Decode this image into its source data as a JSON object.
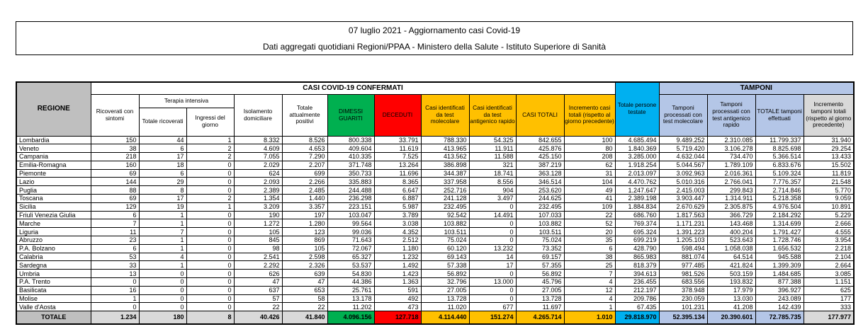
{
  "title": {
    "line1": "07 luglio 2021 - Aggiornamento casi Covid-19",
    "line2": "Dati aggregati quotidiani Regioni/PPAA - Ministero della Salute - Istituto Superiore di Sanità"
  },
  "colors": {
    "green": "#00B050",
    "red": "#FF0000",
    "amber": "#FFC000",
    "cyan": "#00B0F0",
    "lightblue": "#B4C6E7",
    "gray": "#BFBFBF",
    "lightgray": "#D9D9D9"
  },
  "table": {
    "groups": {
      "casi": "CASI COVID-19 CONFERMATI",
      "tamponi": "TAMPONI",
      "terapia": "Terapia intensiva"
    },
    "headers": {
      "regione": "REGIONE",
      "ricoverati": "Ricoverati con sintomi",
      "totale_ricoverati": "Totale ricoverati",
      "ingressi": "Ingressi del giorno",
      "isolamento": "Isolamento domiciliare",
      "attualmente_positivi": "Totale attualmente positivi",
      "dimessi": "DIMESSI GUARITI",
      "deceduti": "DECEDUTI",
      "casi_molecolare": "Casi identificati da test molecolare",
      "casi_antigenico": "Casi identificati da test antigenico rapido",
      "casi_totali": "CASI TOTALI",
      "incremento_casi": "Incremento casi totali (rispetto al giorno precedente)",
      "persone_testate": "Totale persone testate",
      "tamponi_molecolare": "Tamponi processati con test molecolare",
      "tamponi_antigenico": "Tamponi processati con test antigenico rapido",
      "totale_tamponi": "TOTALE tamponi effettuati",
      "incremento_tamponi": "Incremento tamponi totali (rispetto al giorno precedente)"
    },
    "column_keys": [
      "ricoverati-con-sintomi",
      "totale-ricoverati",
      "ingressi-del-giorno",
      "isolamento-domiciliare",
      "totale-attualmente-positivi",
      "dimessi-guariti",
      "deceduti",
      "casi-test-molecolare",
      "casi-test-antigenico",
      "casi-totali",
      "incremento-casi",
      "totale-persone-testate",
      "tamponi-molecolare",
      "tamponi-antigenico",
      "totale-tamponi",
      "incremento-tamponi"
    ],
    "rows": [
      {
        "regione": "Lombardia",
        "values": [
          "150",
          "44",
          "1",
          "8.332",
          "8.526",
          "800.338",
          "33.791",
          "788.330",
          "54.325",
          "842.655",
          "100",
          "4.685.494",
          "9.489.252",
          "2.310.085",
          "11.799.337",
          "31.940"
        ]
      },
      {
        "regione": "Veneto",
        "values": [
          "38",
          "6",
          "2",
          "4.609",
          "4.653",
          "409.604",
          "11.619",
          "413.965",
          "11.911",
          "425.876",
          "80",
          "1.840.369",
          "5.719.420",
          "3.106.278",
          "8.825.698",
          "29.254"
        ]
      },
      {
        "regione": "Campania",
        "values": [
          "218",
          "17",
          "2",
          "7.055",
          "7.290",
          "410.335",
          "7.525",
          "413.562",
          "11.588",
          "425.150",
          "208",
          "3.285.000",
          "4.632.044",
          "734.470",
          "5.366.514",
          "13.433"
        ]
      },
      {
        "regione": "Emilia-Romagna",
        "values": [
          "160",
          "18",
          "0",
          "2.029",
          "2.207",
          "371.748",
          "13.264",
          "386.898",
          "321",
          "387.219",
          "62",
          "1.918.254",
          "5.044.567",
          "1.789.109",
          "6.833.676",
          "15.502"
        ]
      },
      {
        "regione": "Piemonte",
        "values": [
          "69",
          "6",
          "0",
          "624",
          "699",
          "350.733",
          "11.696",
          "344.387",
          "18.741",
          "363.128",
          "31",
          "2.013.097",
          "3.092.963",
          "2.016.361",
          "5.109.324",
          "11.819"
        ]
      },
      {
        "regione": "Lazio",
        "values": [
          "144",
          "29",
          "0",
          "2.093",
          "2.266",
          "335.883",
          "8.365",
          "337.958",
          "8.556",
          "346.514",
          "104",
          "4.470.762",
          "5.010.316",
          "2.766.041",
          "7.776.357",
          "21.548"
        ]
      },
      {
        "regione": "Puglia",
        "values": [
          "88",
          "8",
          "0",
          "2.389",
          "2.485",
          "244.488",
          "6.647",
          "252.716",
          "904",
          "253.620",
          "49",
          "1.247.647",
          "2.415.003",
          "299.843",
          "2.714.846",
          "5.770"
        ]
      },
      {
        "regione": "Toscana",
        "values": [
          "69",
          "17",
          "2",
          "1.354",
          "1.440",
          "236.298",
          "6.887",
          "241.128",
          "3.497",
          "244.625",
          "41",
          "2.389.198",
          "3.903.447",
          "1.314.911",
          "5.218.358",
          "9.059"
        ]
      },
      {
        "regione": "Sicilia",
        "values": [
          "129",
          "19",
          "1",
          "3.209",
          "3.357",
          "223.151",
          "5.987",
          "232.495",
          "0",
          "232.495",
          "109",
          "1.884.834",
          "2.670.629",
          "2.305.875",
          "4.976.504",
          "10.891"
        ]
      },
      {
        "regione": "Friuli Venezia Giulia",
        "values": [
          "6",
          "1",
          "0",
          "190",
          "197",
          "103.047",
          "3.789",
          "92.542",
          "14.491",
          "107.033",
          "22",
          "686.760",
          "1.817.563",
          "366.729",
          "2.184.292",
          "5.229"
        ]
      },
      {
        "regione": "Marche",
        "values": [
          "7",
          "1",
          "0",
          "1.272",
          "1.280",
          "99.564",
          "3.038",
          "103.882",
          "0",
          "103.882",
          "52",
          "769.374",
          "1.171.231",
          "143.468",
          "1.314.699",
          "2.666"
        ]
      },
      {
        "regione": "Liguria",
        "values": [
          "11",
          "7",
          "0",
          "105",
          "123",
          "99.036",
          "4.352",
          "103.511",
          "0",
          "103.511",
          "20",
          "695.324",
          "1.391.223",
          "400.204",
          "1.791.427",
          "4.555"
        ]
      },
      {
        "regione": "Abruzzo",
        "values": [
          "23",
          "1",
          "0",
          "845",
          "869",
          "71.643",
          "2.512",
          "75.024",
          "0",
          "75.024",
          "35",
          "699.219",
          "1.205.103",
          "523.643",
          "1.728.746",
          "3.954"
        ]
      },
      {
        "regione": "P.A. Bolzano",
        "values": [
          "6",
          "1",
          "0",
          "98",
          "105",
          "72.067",
          "1.180",
          "60.120",
          "13.232",
          "73.352",
          "6",
          "428.790",
          "598.494",
          "1.058.038",
          "1.656.532",
          "2.218"
        ]
      },
      {
        "regione": "Calabria",
        "values": [
          "53",
          "4",
          "0",
          "2.541",
          "2.598",
          "65.327",
          "1.232",
          "69.143",
          "14",
          "69.157",
          "38",
          "865.983",
          "881.074",
          "64.514",
          "945.588",
          "2.104"
        ]
      },
      {
        "regione": "Sardegna",
        "values": [
          "33",
          "1",
          "0",
          "2.292",
          "2.326",
          "53.537",
          "1.492",
          "57.338",
          "17",
          "57.355",
          "25",
          "818.379",
          "977.485",
          "421.824",
          "1.399.309",
          "2.664"
        ]
      },
      {
        "regione": "Umbria",
        "values": [
          "13",
          "0",
          "0",
          "626",
          "639",
          "54.830",
          "1.423",
          "56.892",
          "0",
          "56.892",
          "7",
          "394.613",
          "981.526",
          "503.159",
          "1.484.685",
          "3.085"
        ]
      },
      {
        "regione": "P.A. Trento",
        "values": [
          "0",
          "0",
          "0",
          "47",
          "47",
          "44.386",
          "1.363",
          "32.796",
          "13.000",
          "45.796",
          "4",
          "236.455",
          "683.556",
          "193.832",
          "877.388",
          "1.151"
        ]
      },
      {
        "regione": "Basilicata",
        "values": [
          "16",
          "0",
          "0",
          "637",
          "653",
          "25.761",
          "591",
          "27.005",
          "0",
          "27.005",
          "12",
          "212.197",
          "378.948",
          "17.979",
          "396.927",
          "625"
        ]
      },
      {
        "regione": "Molise",
        "values": [
          "1",
          "0",
          "0",
          "57",
          "58",
          "13.178",
          "492",
          "13.728",
          "0",
          "13.728",
          "4",
          "209.786",
          "230.059",
          "13.030",
          "243.089",
          "177"
        ]
      },
      {
        "regione": "Valle d'Aosta",
        "values": [
          "0",
          "0",
          "0",
          "22",
          "22",
          "11.202",
          "473",
          "11.020",
          "677",
          "11.697",
          "1",
          "67.435",
          "101.231",
          "41.208",
          "142.439",
          "333"
        ]
      }
    ],
    "total": {
      "label": "TOTALE",
      "values": [
        "1.234",
        "180",
        "8",
        "40.426",
        "41.840",
        "4.096.156",
        "127.718",
        "4.114.440",
        "151.274",
        "4.265.714",
        "1.010",
        "29.818.970",
        "52.395.134",
        "20.390.601",
        "72.785.735",
        "177.977"
      ]
    }
  }
}
